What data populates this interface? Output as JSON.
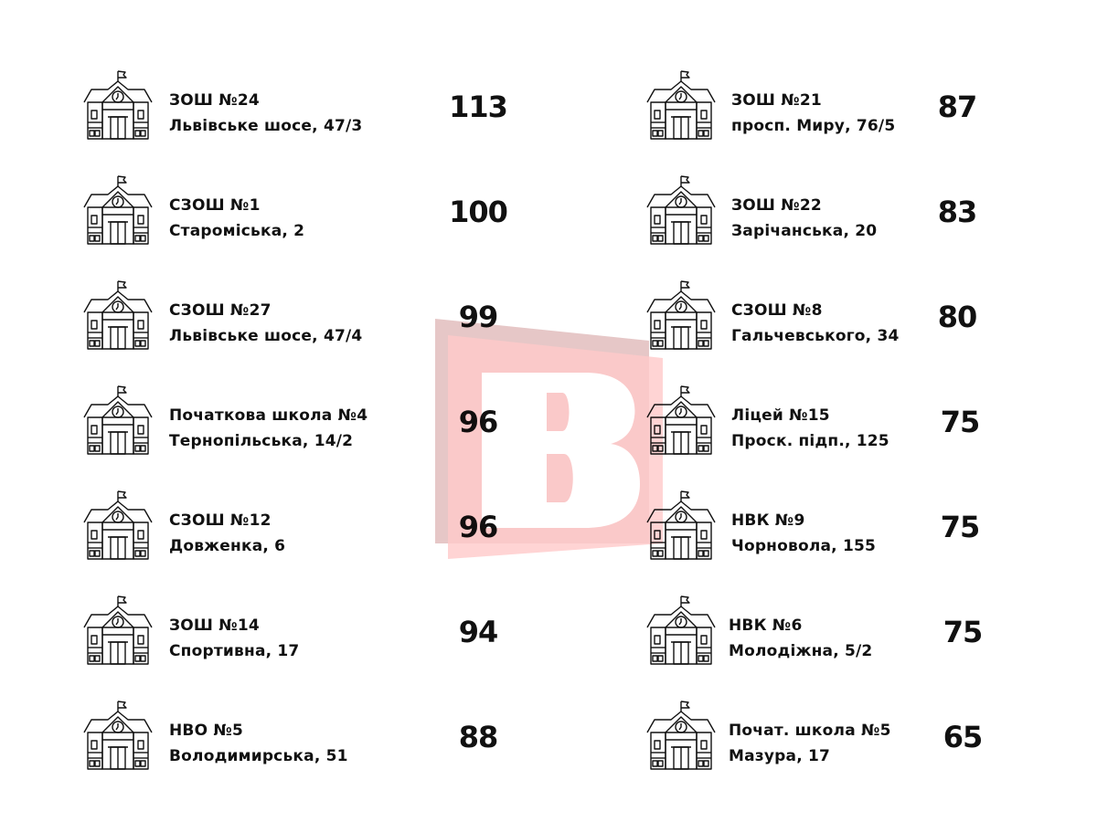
{
  "icon": "school-building-icon",
  "watermark_letter": "B",
  "watermark_color": "#f4a6a6",
  "left": [
    {
      "name": "ЗОШ №24",
      "address": "Львівське шосе, 47/3",
      "value": "113"
    },
    {
      "name": "СЗОШ №1",
      "address": "Старомiська, 2",
      "value": "100"
    },
    {
      "name": "СЗОШ №27",
      "address": "Львівське шосе, 47/4",
      "value": "99"
    },
    {
      "name": "Початкова школа №4",
      "address": "Тернопільська, 14/2",
      "value": "96"
    },
    {
      "name": "СЗОШ №12",
      "address": "Довженка, 6",
      "value": "96"
    },
    {
      "name": "ЗОШ №14",
      "address": "Спортивна, 17",
      "value": "94"
    },
    {
      "name": "НВО №5",
      "address": "Володимирська,  51",
      "value": "88"
    }
  ],
  "right": [
    {
      "name": "ЗОШ №21",
      "address": "просп. Миру, 76/5",
      "value": "87"
    },
    {
      "name": "ЗОШ №22",
      "address": "Зарічанська, 20",
      "value": "83"
    },
    {
      "name": "СЗОШ №8",
      "address": "Гальчевського, 34",
      "value": "80"
    },
    {
      "name": "Ліцей №15",
      "address": "Проск. підп., 125",
      "value": "75"
    },
    {
      "name": "НВК №9",
      "address": "Чорновола, 155",
      "value": "75"
    },
    {
      "name": "НВК №6",
      "address": "Молодіжна, 5/2",
      "value": "75"
    },
    {
      "name": "Почат. школа №5",
      "address": "Мазура, 17",
      "value": "65"
    }
  ]
}
